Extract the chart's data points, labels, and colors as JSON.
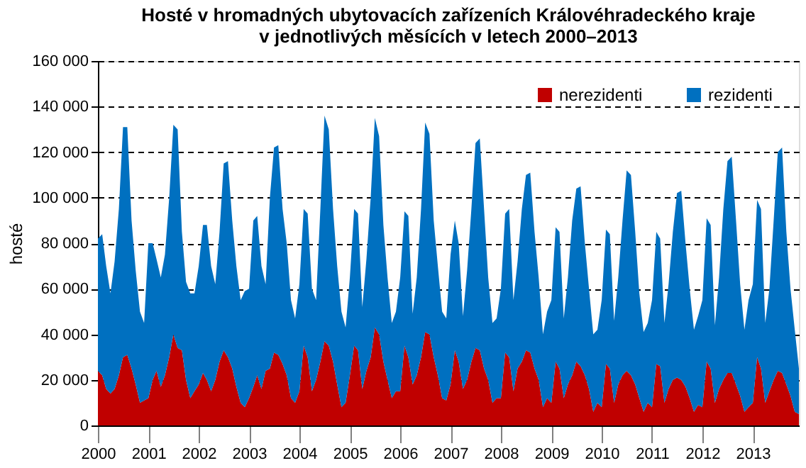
{
  "chart_data": {
    "type": "area",
    "stacked": true,
    "title": "Hosté v hromadných ubytovacích zařízeních Královéhradeckého kraje\nv jednotlivých měsících v letech 2000–2013",
    "ylabel": "hosté",
    "x": [
      "2000-01",
      "2000-02",
      "2000-03",
      "2000-04",
      "2000-05",
      "2000-06",
      "2000-07",
      "2000-08",
      "2000-09",
      "2000-10",
      "2000-11",
      "2000-12",
      "2001-01",
      "2001-02",
      "2001-03",
      "2001-04",
      "2001-05",
      "2001-06",
      "2001-07",
      "2001-08",
      "2001-09",
      "2001-10",
      "2001-11",
      "2001-12",
      "2002-01",
      "2002-02",
      "2002-03",
      "2002-04",
      "2002-05",
      "2002-06",
      "2002-07",
      "2002-08",
      "2002-09",
      "2002-10",
      "2002-11",
      "2002-12",
      "2003-01",
      "2003-02",
      "2003-03",
      "2003-04",
      "2003-05",
      "2003-06",
      "2003-07",
      "2003-08",
      "2003-09",
      "2003-10",
      "2003-11",
      "2003-12",
      "2004-01",
      "2004-02",
      "2004-03",
      "2004-04",
      "2004-05",
      "2004-06",
      "2004-07",
      "2004-08",
      "2004-09",
      "2004-10",
      "2004-11",
      "2004-12",
      "2005-01",
      "2005-02",
      "2005-03",
      "2005-04",
      "2005-05",
      "2005-06",
      "2005-07",
      "2005-08",
      "2005-09",
      "2005-10",
      "2005-11",
      "2005-12",
      "2006-01",
      "2006-02",
      "2006-03",
      "2006-04",
      "2006-05",
      "2006-06",
      "2006-07",
      "2006-08",
      "2006-09",
      "2006-10",
      "2006-11",
      "2006-12",
      "2007-01",
      "2007-02",
      "2007-03",
      "2007-04",
      "2007-05",
      "2007-06",
      "2007-07",
      "2007-08",
      "2007-09",
      "2007-10",
      "2007-11",
      "2007-12",
      "2008-01",
      "2008-02",
      "2008-03",
      "2008-04",
      "2008-05",
      "2008-06",
      "2008-07",
      "2008-08",
      "2008-09",
      "2008-10",
      "2008-11",
      "2008-12",
      "2009-01",
      "2009-02",
      "2009-03",
      "2009-04",
      "2009-05",
      "2009-06",
      "2009-07",
      "2009-08",
      "2009-09",
      "2009-10",
      "2009-11",
      "2009-12",
      "2010-01",
      "2010-02",
      "2010-03",
      "2010-04",
      "2010-05",
      "2010-06",
      "2010-07",
      "2010-08",
      "2010-09",
      "2010-10",
      "2010-11",
      "2010-12",
      "2011-01",
      "2011-02",
      "2011-03",
      "2011-04",
      "2011-05",
      "2011-06",
      "2011-07",
      "2011-08",
      "2011-09",
      "2011-10",
      "2011-11",
      "2011-12",
      "2012-01",
      "2012-02",
      "2012-03",
      "2012-04",
      "2012-05",
      "2012-06",
      "2012-07",
      "2012-08",
      "2012-09",
      "2012-10",
      "2012-11",
      "2012-12",
      "2013-01",
      "2013-02",
      "2013-03",
      "2013-04",
      "2013-05",
      "2013-06",
      "2013-07",
      "2013-08",
      "2013-09",
      "2013-10",
      "2013-11",
      "2013-12"
    ],
    "series": [
      {
        "name": "nerezidenti",
        "color": "#c00000",
        "values": [
          24000,
          22000,
          16000,
          14000,
          16000,
          22000,
          30000,
          31000,
          25000,
          18000,
          10000,
          11000,
          12000,
          20000,
          24000,
          17000,
          22000,
          30000,
          40000,
          34000,
          33000,
          20000,
          12000,
          15000,
          18000,
          23000,
          20000,
          15000,
          20000,
          28000,
          33000,
          30000,
          25000,
          17000,
          10000,
          8000,
          12000,
          17000,
          22000,
          16000,
          24000,
          25000,
          32000,
          31000,
          27000,
          22000,
          12000,
          10000,
          15000,
          35000,
          30000,
          15000,
          20000,
          28000,
          37000,
          35000,
          28000,
          18000,
          8000,
          10000,
          22000,
          35000,
          33000,
          16000,
          24000,
          30000,
          43000,
          40000,
          28000,
          20000,
          12000,
          15000,
          15000,
          35000,
          30000,
          18000,
          22000,
          30000,
          41000,
          40000,
          30000,
          22000,
          12000,
          11000,
          18000,
          33000,
          28000,
          16000,
          20000,
          28000,
          34000,
          33000,
          25000,
          20000,
          10000,
          12000,
          12000,
          32000,
          30000,
          15000,
          25000,
          28000,
          33000,
          32000,
          25000,
          20000,
          8000,
          12000,
          10000,
          28000,
          25000,
          12000,
          18000,
          22000,
          28000,
          26000,
          22000,
          16000,
          6000,
          10000,
          8000,
          27000,
          25000,
          10000,
          18000,
          22000,
          24000,
          22000,
          18000,
          12000,
          6000,
          10000,
          8000,
          27000,
          26000,
          10000,
          16000,
          20000,
          21000,
          20000,
          17000,
          12000,
          6000,
          9000,
          8000,
          28000,
          25000,
          10000,
          16000,
          20000,
          23000,
          23000,
          18000,
          13000,
          6000,
          8000,
          10000,
          30000,
          25000,
          10000,
          15000,
          20000,
          24000,
          23000,
          18000,
          13000,
          6000,
          5000
        ]
      },
      {
        "name": "rezidenti",
        "color": "#0070c0",
        "values": [
          58000,
          62000,
          54000,
          44000,
          56000,
          73000,
          101000,
          100000,
          65000,
          50000,
          40000,
          34000,
          68000,
          60000,
          49000,
          48000,
          53000,
          70000,
          92000,
          96000,
          52000,
          43000,
          46000,
          43000,
          52000,
          65000,
          68000,
          55000,
          42000,
          57000,
          82000,
          86000,
          65000,
          53000,
          45000,
          51000,
          48000,
          73000,
          70000,
          54000,
          38000,
          75000,
          90000,
          92000,
          68000,
          58000,
          43000,
          37000,
          47000,
          60000,
          63000,
          45000,
          35000,
          67000,
          99000,
          95000,
          67000,
          52000,
          42000,
          33000,
          43000,
          60000,
          60000,
          36000,
          49000,
          70000,
          92000,
          87000,
          60000,
          45000,
          33000,
          35000,
          50000,
          59000,
          62000,
          31000,
          43000,
          65000,
          92000,
          88000,
          60000,
          48000,
          38000,
          36000,
          57000,
          57000,
          52000,
          32000,
          48000,
          67000,
          90000,
          93000,
          70000,
          45000,
          35000,
          35000,
          48000,
          61000,
          65000,
          40000,
          47000,
          67000,
          77000,
          79000,
          60000,
          45000,
          32000,
          38000,
          45000,
          59000,
          60000,
          35000,
          47000,
          68000,
          76000,
          79000,
          58000,
          44000,
          34000,
          32000,
          47000,
          59000,
          59000,
          36000,
          47000,
          68000,
          88000,
          88000,
          67000,
          46000,
          35000,
          35000,
          47000,
          58000,
          56000,
          35000,
          46000,
          65000,
          81000,
          83000,
          63000,
          48000,
          36000,
          39000,
          47000,
          63000,
          63000,
          34000,
          49000,
          75000,
          93000,
          95000,
          72000,
          49000,
          36000,
          47000,
          52000,
          69000,
          70000,
          35000,
          45000,
          70000,
          96000,
          99000,
          67000,
          47000,
          36000,
          20000
        ]
      }
    ],
    "xlim": [
      "2000-01",
      "2013-12"
    ],
    "xticks": [
      "2000",
      "2001",
      "2002",
      "2003",
      "2004",
      "2005",
      "2006",
      "2007",
      "2008",
      "2009",
      "2010",
      "2011",
      "2012",
      "2013"
    ],
    "ylim": [
      0,
      160000
    ],
    "yticks": [
      0,
      {
        "value": 20000,
        "label": "20 000"
      },
      {
        "value": 40000,
        "label": "40 000"
      },
      {
        "value": 60000,
        "label": "60 000"
      },
      {
        "value": 80000,
        "label": "80 000"
      },
      {
        "value": 100000,
        "label": "100 000"
      },
      {
        "value": 120000,
        "label": "120 000"
      },
      {
        "value": 140000,
        "label": "140 000"
      },
      {
        "value": 160000,
        "label": "160 000"
      }
    ],
    "grid": "y",
    "legend": "top right"
  }
}
